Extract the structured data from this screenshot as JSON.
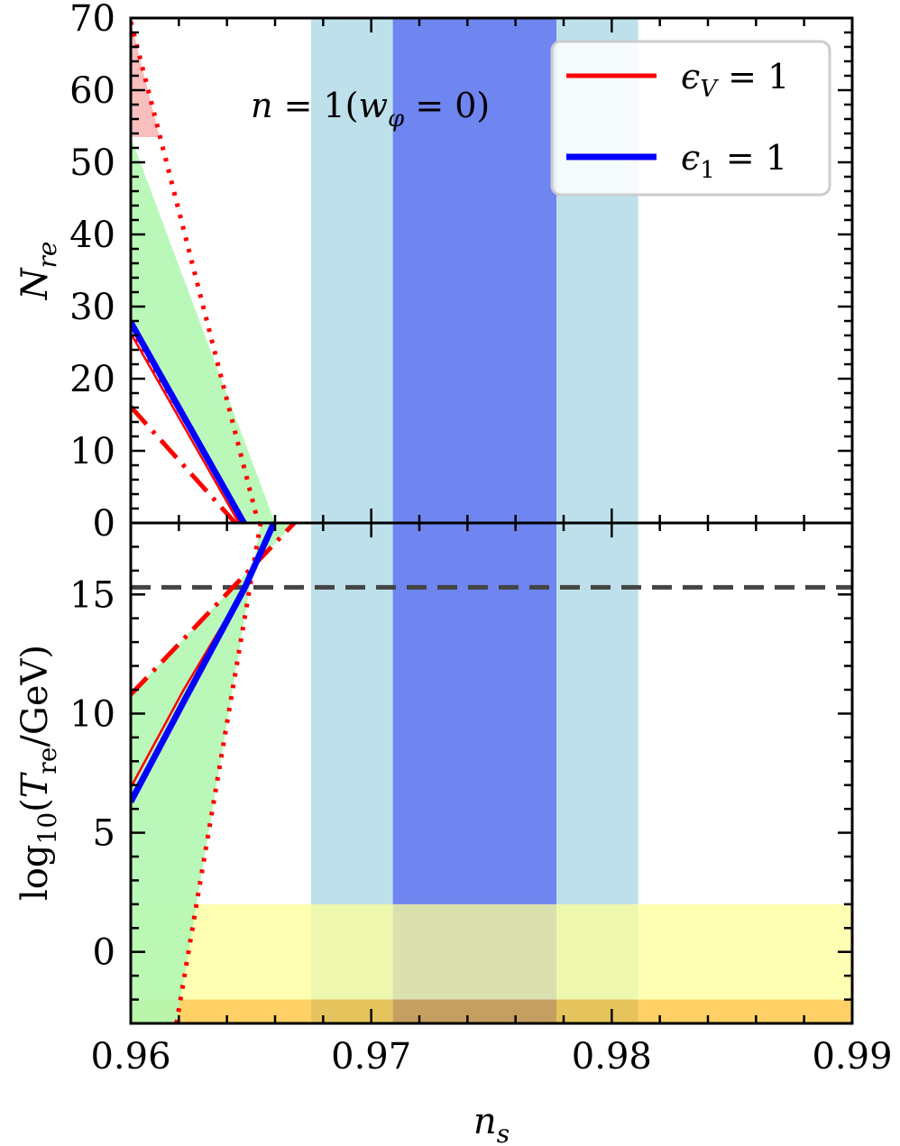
{
  "chart_data": {
    "type": "line",
    "shared_x": {
      "label": "n_s",
      "lim": [
        0.96,
        0.99
      ],
      "ticks": [
        "0.96",
        "0.97",
        "0.98",
        "0.99"
      ]
    },
    "bands_x": [
      {
        "range": [
          0.9675,
          0.9811
        ],
        "color": "#add8e6",
        "alpha": 0.8
      },
      {
        "range": [
          0.9709,
          0.9777
        ],
        "color": "#6a7ff0",
        "alpha": 0.95
      }
    ],
    "panels": [
      {
        "id": "top",
        "ylabel": "N_re",
        "ylim": [
          0,
          70
        ],
        "yticks": [
          "0",
          "10",
          "20",
          "30",
          "40",
          "50",
          "60",
          "70"
        ],
        "annotation": "n = 1(w_φ = 0)",
        "legend": {
          "position": "top-right",
          "entries": [
            {
              "label": "ε_V = 1",
              "color": "#ff0000"
            },
            {
              "label": "ε_1 = 1",
              "color": "#0000ff"
            }
          ]
        },
        "fills": [
          {
            "name": "allowed-region",
            "color": "#b3f7b3",
            "points": [
              [
                0.96,
                53.5
              ],
              [
                0.96,
                27
              ],
              [
                0.96475,
                0
              ],
              [
                0.966,
                0
              ]
            ]
          },
          {
            "name": "excluded-region",
            "color": "#f8b8b8",
            "points": [
              [
                0.96,
                69.5
              ],
              [
                0.96,
                53.5
              ],
              [
                0.9612,
                53.5
              ]
            ]
          }
        ],
        "series": [
          {
            "style": "dotted",
            "color": "#ff0000",
            "x": [
              0.96,
              0.9653
            ],
            "y": [
              69.5,
              0
            ]
          },
          {
            "style": "dotted",
            "color": "#ff0000",
            "x": [
              0.96,
              0.96475
            ],
            "y": [
              27,
              0
            ]
          },
          {
            "style": "dashdot",
            "color": "#ff0000",
            "x": [
              0.96,
              0.96435
            ],
            "y": [
              16.1,
              0
            ]
          },
          {
            "style": "solid",
            "color": "#ff0000",
            "width": 2.5,
            "x": [
              0.96,
              0.9645
            ],
            "y": [
              26.3,
              0
            ]
          },
          {
            "style": "solid",
            "color": "#0000ff",
            "width": 7,
            "x": [
              0.96,
              0.9647
            ],
            "y": [
              27.8,
              0
            ]
          }
        ]
      },
      {
        "id": "bottom",
        "ylabel": "log10(T_re/GeV)",
        "ylim": [
          -3,
          18
        ],
        "yticks": [
          "0",
          "5",
          "10",
          "15"
        ],
        "hlines": [
          {
            "y": 15.3,
            "style": "dashed",
            "color": "#444444"
          }
        ],
        "bands_y": [
          {
            "range": [
              -2,
              2
            ],
            "color": "#ffff99",
            "alpha": 0.75
          },
          {
            "range": [
              -3,
              -2
            ],
            "color": "#ffb000",
            "alpha": 0.6
          }
        ],
        "fills": [
          {
            "name": "allowed-region",
            "color": "#b3f7b3",
            "points": [
              [
                0.96,
                10.8
              ],
              [
                0.9668,
                18
              ],
              [
                0.9654,
                18
              ],
              [
                0.9619,
                -3
              ],
              [
                0.96,
                -3
              ]
            ]
          }
        ],
        "series": [
          {
            "style": "dotted",
            "color": "#ff0000",
            "x": [
              0.9619,
              0.9654
            ],
            "y": [
              -3,
              18
            ]
          },
          {
            "style": "dashdot",
            "color": "#ff0000",
            "x": [
              0.96,
              0.9668
            ],
            "y": [
              10.8,
              18
            ]
          },
          {
            "style": "solid",
            "color": "#ff0000",
            "width": 2.5,
            "x": [
              0.96,
              0.9622,
              0.96475,
              0.96595
            ],
            "y": [
              6.9,
              11.0,
              15.3,
              18
            ]
          },
          {
            "style": "solid",
            "color": "#0000ff",
            "width": 7,
            "x": [
              0.96,
              0.9622,
              0.96475,
              0.96595
            ],
            "y": [
              6.3,
              10.5,
              15.3,
              18
            ]
          }
        ]
      }
    ]
  }
}
